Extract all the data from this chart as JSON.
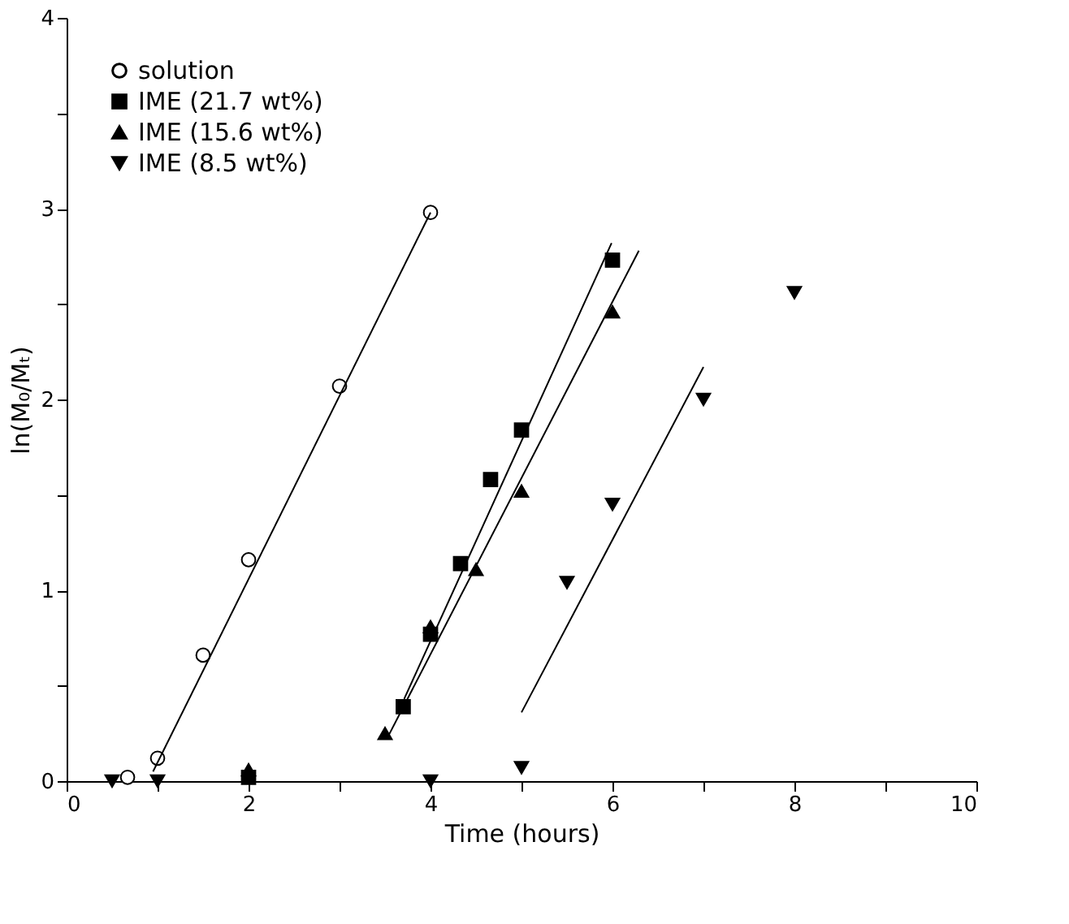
{
  "chart_data": {
    "type": "scatter",
    "xlabel": "Time (hours)",
    "ylabel": "ln(M₀/Mₜ)",
    "xlim": [
      0,
      10
    ],
    "ylim": [
      0,
      4
    ],
    "xticks": [
      0,
      {
        "value": 1,
        "label": null
      },
      2,
      {
        "value": 3,
        "label": null
      },
      4,
      {
        "value": 5,
        "label": null
      },
      6,
      {
        "value": 7,
        "label": null
      },
      8,
      {
        "value": 9,
        "label": null
      },
      10
    ],
    "yticks": [
      0,
      {
        "value": 0.5,
        "label": null
      },
      1,
      {
        "value": 1.5,
        "label": null
      },
      2,
      {
        "value": 2.5,
        "label": null
      },
      3,
      {
        "value": 3.5,
        "label": null
      },
      4
    ],
    "grid": false,
    "legend": "top left",
    "series": [
      {
        "name": "solution",
        "marker": "circle",
        "color": "#000000",
        "x": [
          0.67,
          1,
          1.5,
          2,
          3,
          4
        ],
        "values": [
          0.02,
          0.12,
          0.66,
          1.16,
          2.07,
          2.98
        ]
      },
      {
        "name": "IME (21.7 wt%)",
        "marker": "square",
        "color": "#000000",
        "x": [
          2,
          3.7,
          4,
          4.33,
          4.66,
          5,
          6
        ],
        "values": [
          0.02,
          0.39,
          0.77,
          1.14,
          1.58,
          1.84,
          2.73
        ]
      },
      {
        "name": "IME (15.6 wt%)",
        "marker": "triangle",
        "color": "#000000",
        "x": [
          2,
          3.5,
          4,
          4.5,
          5,
          6
        ],
        "values": [
          0.06,
          0.25,
          0.81,
          1.11,
          1.52,
          2.46
        ]
      },
      {
        "name": "IME (8.5 wt%)",
        "marker": "triangle-down",
        "color": "#000000",
        "x": [
          0.5,
          1,
          4,
          5,
          5.5,
          6,
          7,
          8
        ],
        "values": [
          0,
          0,
          0,
          0.07,
          1.04,
          1.45,
          2.0,
          2.56
        ]
      },
      {
        "type": "line",
        "color": "#000000",
        "line_style": "solid",
        "x": [
          0.95,
          4.0
        ],
        "values": [
          0.05,
          2.98
        ]
      },
      {
        "type": "line",
        "color": "#000000",
        "line_style": "solid",
        "x": [
          3.71,
          5.99
        ],
        "values": [
          0.43,
          2.82
        ]
      },
      {
        "type": "line",
        "color": "#000000",
        "line_style": "solid",
        "x": [
          3.54,
          6.29
        ],
        "values": [
          0.24,
          2.78
        ]
      },
      {
        "type": "line",
        "color": "#000000",
        "line_style": "solid",
        "x": [
          5.0,
          7.0
        ],
        "values": [
          0.36,
          2.17
        ]
      }
    ]
  }
}
